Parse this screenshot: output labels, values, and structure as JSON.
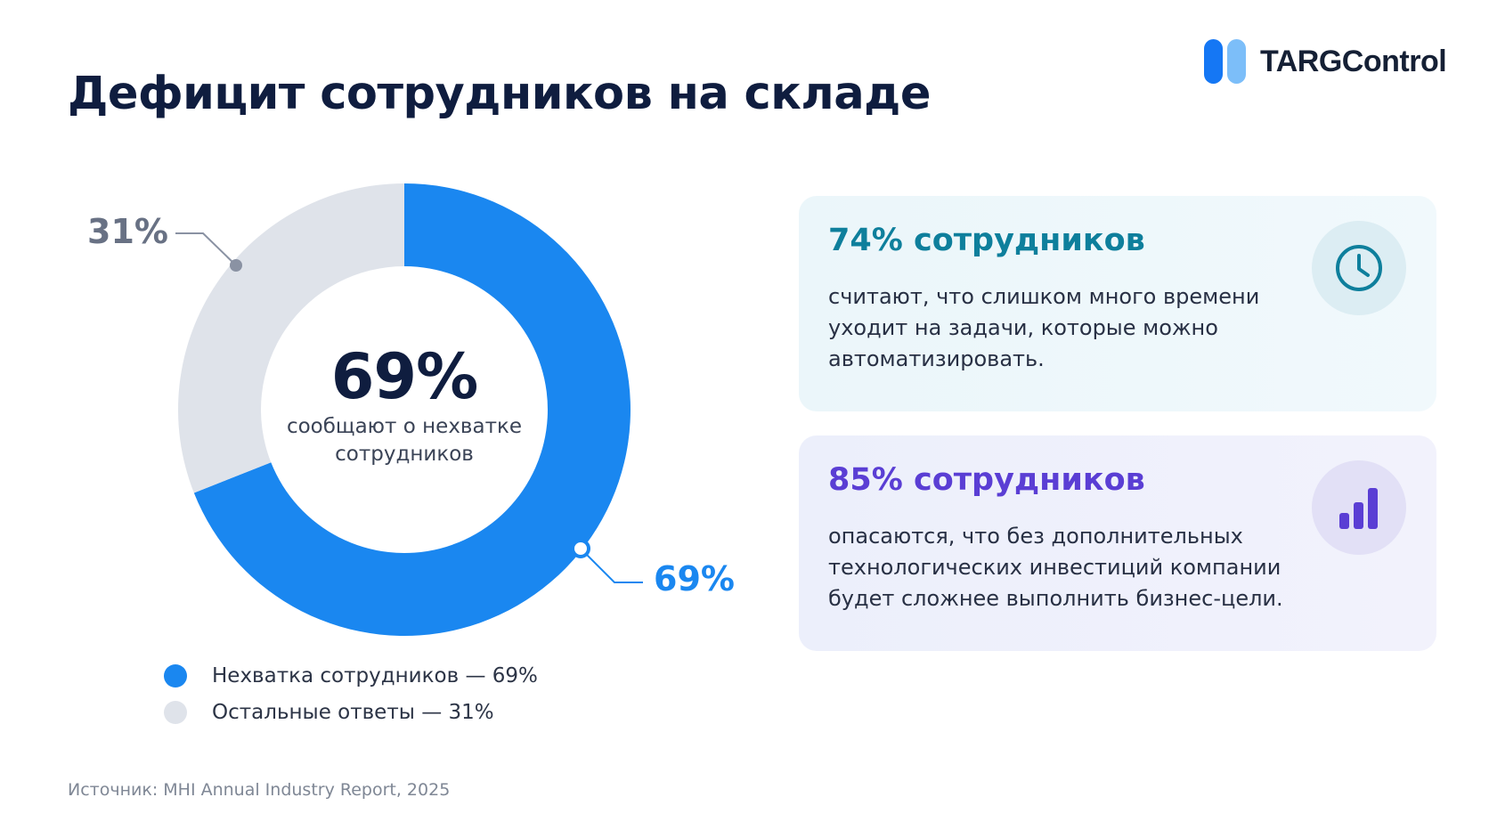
{
  "title": "Дефицит сотрудников на складе",
  "brand": {
    "name": "TARGControl"
  },
  "chart_data": {
    "type": "pie",
    "categories": [
      "Нехватка сотрудников",
      "Остальные ответы"
    ],
    "values": [
      69,
      31
    ],
    "value_labels": [
      "69%",
      "31%"
    ],
    "colors": [
      "#1a87f0",
      "#dfe3ea"
    ],
    "center": {
      "value": "69%",
      "caption_line1": "сообщают о нехватке",
      "caption_line2": "сотрудников"
    },
    "legend": {
      "placement": "bottom-left",
      "items": [
        {
          "label": "Нехватка сотрудников — 69%",
          "color": "#1a87f0"
        },
        {
          "label": "Остальные ответы — 31%",
          "color": "#dfe3ea"
        }
      ]
    }
  },
  "cards": [
    {
      "title": "74% сотрудников",
      "text": "считают, что слишком много времени уходит на задачи, которые можно автоматизировать.",
      "icon": "clock-icon",
      "accent": "#0e7f9c"
    },
    {
      "title": "85% сотрудников",
      "text": "опасаются, что без дополнительных технологических инвестиций компании будет сложнее выполнить бизнес-цели.",
      "icon": "bar-chart-icon",
      "accent": "#5a3ed4"
    }
  ],
  "source": "Источник: MHI Annual Industry Report, 2025"
}
